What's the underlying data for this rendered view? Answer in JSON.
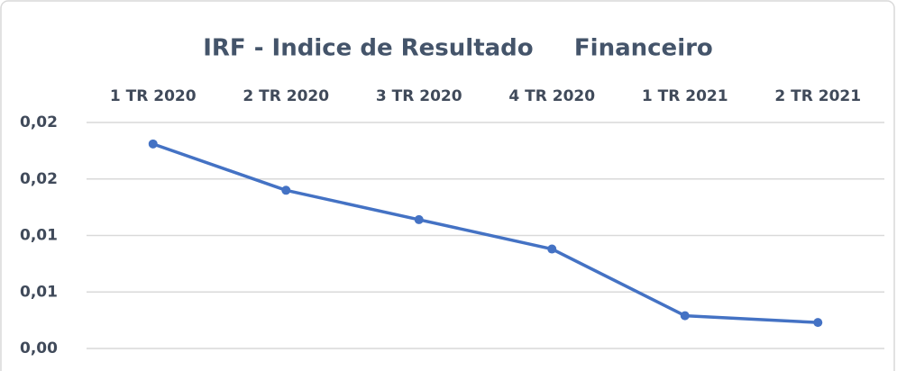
{
  "chart_data": {
    "type": "line",
    "title": "IRF - Indice de Resultado     Financeiro",
    "categories": [
      "1 TR 2020",
      "2 TR 2020",
      "3 TR 2020",
      "4 TR 2020",
      "1 TR 2021",
      "2 TR 2021"
    ],
    "series": [
      {
        "name": "IRF",
        "color": "#4472c4",
        "values": [
          0.0181,
          0.014,
          0.0114,
          0.0088,
          0.0029,
          0.0023
        ]
      }
    ],
    "ylim": [
      0,
      0.02
    ],
    "yticks": [
      {
        "value": 0,
        "label": "0,00"
      },
      {
        "value": 0.005,
        "label": "0,01"
      },
      {
        "value": 0.01,
        "label": "0,01"
      },
      {
        "value": 0.015,
        "label": "0,02"
      },
      {
        "value": 0.02,
        "label": "0,02"
      }
    ],
    "grid": true
  }
}
